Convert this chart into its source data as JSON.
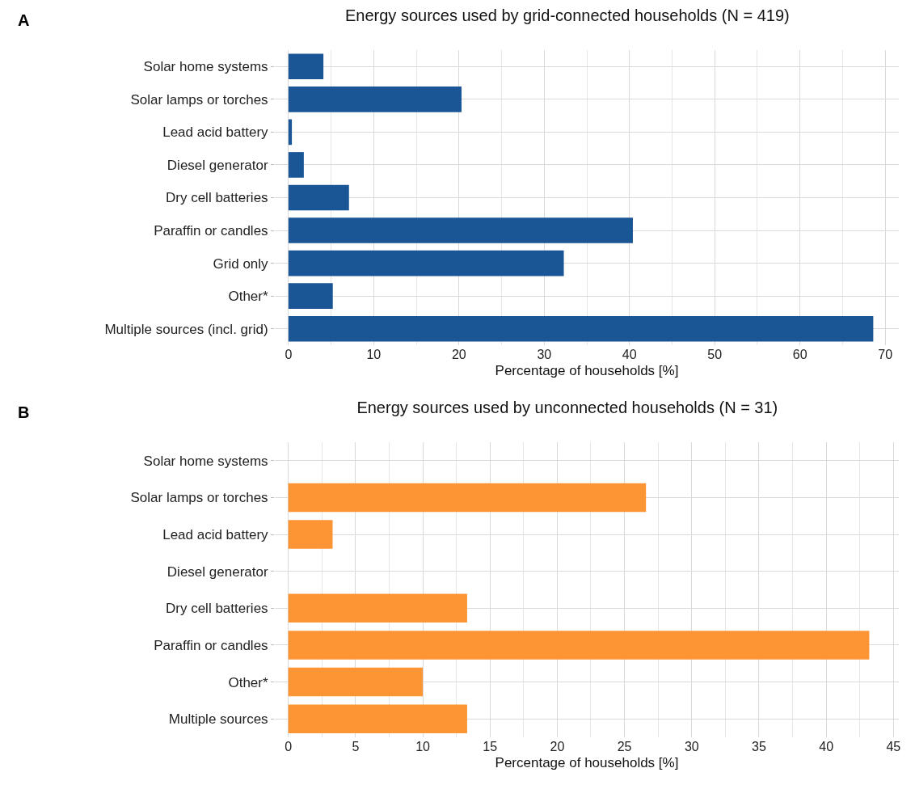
{
  "chart_data": [
    {
      "type": "bar",
      "orientation": "horizontal",
      "title": "Energy sources used by grid-connected households (N = 419)",
      "xlabel": "Percentage of households [%]",
      "annotations": [
        "A"
      ],
      "categories": [
        "Solar home systems",
        "Solar lamps or torches",
        "Lead acid battery",
        "Diesel generator",
        "Dry cell batteries",
        "Paraffin or candles",
        "Grid only",
        "Other*",
        "Multiple sources (incl. grid)"
      ],
      "values": [
        4.1,
        20.3,
        0.4,
        1.8,
        7.1,
        40.4,
        32.3,
        5.2,
        68.6
      ],
      "color": "#1a5595",
      "xlim": [
        -1.6,
        71.6
      ],
      "xticks": [
        0,
        10,
        20,
        30,
        40,
        50,
        60,
        70
      ],
      "grid": true
    },
    {
      "type": "bar",
      "orientation": "horizontal",
      "title": "Energy sources used by unconnected households (N = 31)",
      "xlabel": "Percentage of households [%]",
      "annotations": [
        "B"
      ],
      "categories": [
        "Solar home systems",
        "Solar lamps or torches",
        "Lead acid battery",
        "Diesel generator",
        "Dry cell batteries",
        "Paraffin or candles",
        "Other*",
        "Multiple sources"
      ],
      "values": [
        0,
        26.6,
        3.3,
        0,
        13.3,
        43.2,
        10.0,
        13.3
      ],
      "color": "#fd9535",
      "xlim": [
        -1,
        45.4
      ],
      "xticks": [
        0,
        5,
        10,
        15,
        20,
        25,
        30,
        35,
        40,
        45
      ],
      "grid": true
    }
  ]
}
